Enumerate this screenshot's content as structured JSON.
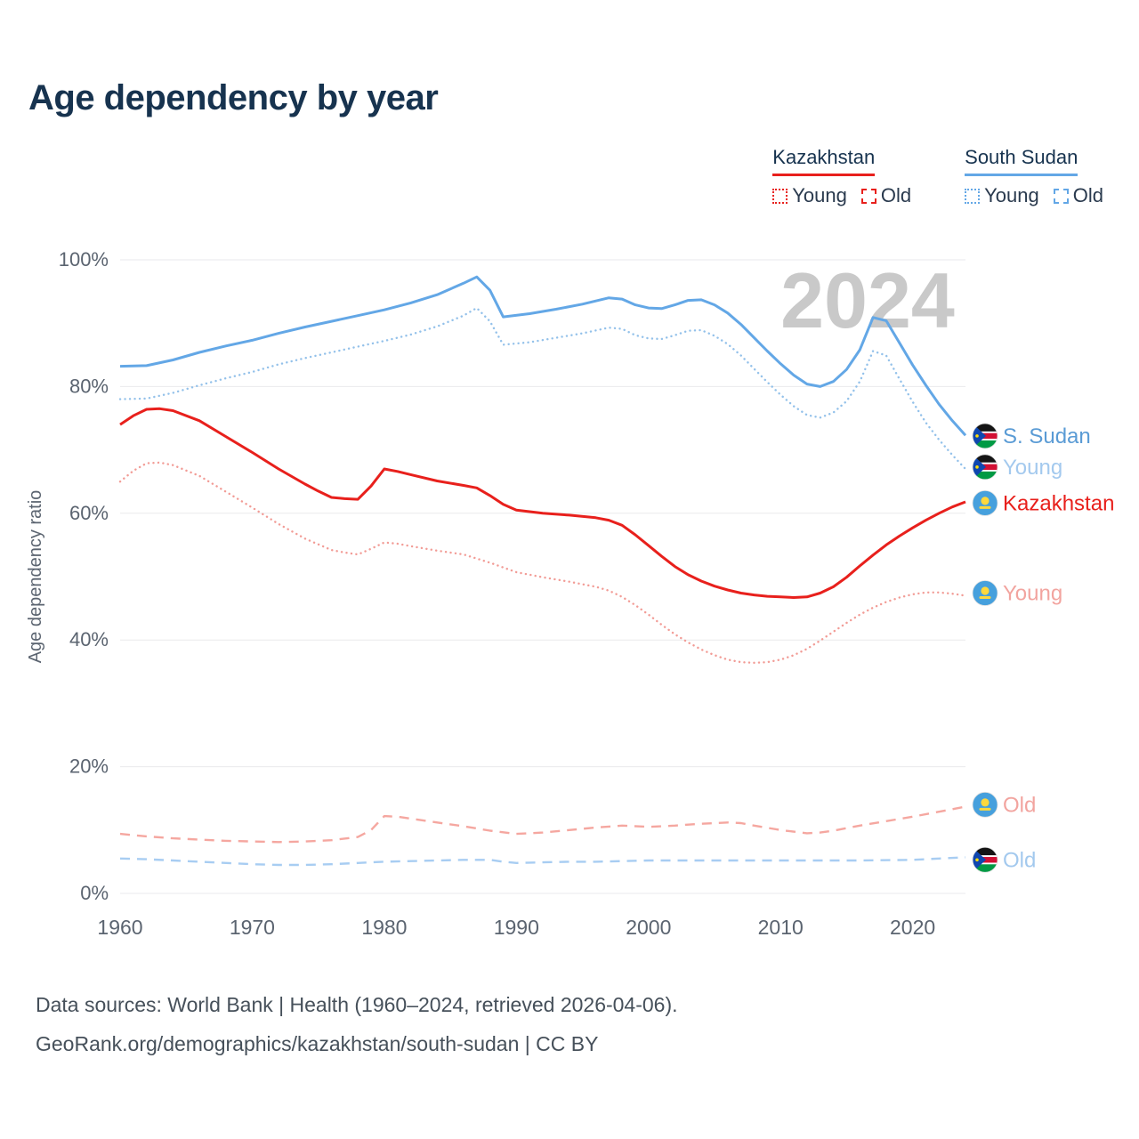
{
  "title": "Age dependency by year",
  "watermark": "2024",
  "legend": {
    "groups": [
      {
        "country": "Kazakhstan",
        "color": "#e8201c",
        "items": [
          {
            "label": "Young",
            "style": "dotted"
          },
          {
            "label": "Old",
            "style": "dashed"
          }
        ]
      },
      {
        "country": "South Sudan",
        "color": "#63a7e6",
        "items": [
          {
            "label": "Young",
            "style": "dotted"
          },
          {
            "label": "Old",
            "style": "dashed"
          }
        ]
      }
    ]
  },
  "chart_data": {
    "type": "line",
    "title": "Age dependency by year",
    "xlabel": "",
    "ylabel": "Age dependency ratio",
    "xlim": [
      1960,
      2024
    ],
    "ylim": [
      0,
      100
    ],
    "x_ticks": [
      1960,
      1970,
      1980,
      1990,
      2000,
      2010,
      2020
    ],
    "y_ticks": [
      0,
      20,
      40,
      60,
      80,
      100
    ],
    "y_tick_suffix": "%",
    "grid": true,
    "legend_position": "top-right",
    "series": [
      {
        "id": "south-sudan-total",
        "name": "South Sudan (total)",
        "color": "#63a7e6",
        "style": "solid",
        "points": [
          [
            1960,
            83.2
          ],
          [
            1962,
            83.3
          ],
          [
            1964,
            84.2
          ],
          [
            1966,
            85.4
          ],
          [
            1968,
            86.4
          ],
          [
            1970,
            87.3
          ],
          [
            1972,
            88.4
          ],
          [
            1974,
            89.4
          ],
          [
            1976,
            90.3
          ],
          [
            1978,
            91.2
          ],
          [
            1980,
            92.1
          ],
          [
            1982,
            93.2
          ],
          [
            1984,
            94.5
          ],
          [
            1986,
            96.3
          ],
          [
            1987,
            97.3
          ],
          [
            1988,
            95.2
          ],
          [
            1989,
            91.0
          ],
          [
            1991,
            91.5
          ],
          [
            1993,
            92.2
          ],
          [
            1995,
            93.0
          ],
          [
            1997,
            94.0
          ],
          [
            1998,
            93.8
          ],
          [
            1999,
            92.9
          ],
          [
            2000,
            92.4
          ],
          [
            2001,
            92.3
          ],
          [
            2002,
            92.9
          ],
          [
            2003,
            93.6
          ],
          [
            2004,
            93.7
          ],
          [
            2005,
            92.9
          ],
          [
            2006,
            91.6
          ],
          [
            2007,
            89.8
          ],
          [
            2008,
            87.7
          ],
          [
            2009,
            85.6
          ],
          [
            2010,
            83.6
          ],
          [
            2011,
            81.8
          ],
          [
            2012,
            80.4
          ],
          [
            2013,
            80.0
          ],
          [
            2014,
            80.8
          ],
          [
            2015,
            82.7
          ],
          [
            2016,
            85.8
          ],
          [
            2017,
            90.9
          ],
          [
            2018,
            90.4
          ],
          [
            2019,
            86.9
          ],
          [
            2020,
            83.4
          ],
          [
            2021,
            80.2
          ],
          [
            2022,
            77.2
          ],
          [
            2023,
            74.6
          ],
          [
            2024,
            72.3
          ]
        ]
      },
      {
        "id": "south-sudan-young",
        "name": "South Sudan Young",
        "color": "#93c1ea",
        "style": "dotted",
        "points": [
          [
            1960,
            78.0
          ],
          [
            1962,
            78.1
          ],
          [
            1964,
            79.0
          ],
          [
            1966,
            80.2
          ],
          [
            1968,
            81.3
          ],
          [
            1970,
            82.3
          ],
          [
            1972,
            83.5
          ],
          [
            1974,
            84.5
          ],
          [
            1976,
            85.4
          ],
          [
            1978,
            86.3
          ],
          [
            1980,
            87.2
          ],
          [
            1982,
            88.2
          ],
          [
            1984,
            89.5
          ],
          [
            1986,
            91.2
          ],
          [
            1987,
            92.4
          ],
          [
            1988,
            90.3
          ],
          [
            1989,
            86.6
          ],
          [
            1991,
            87.0
          ],
          [
            1993,
            87.7
          ],
          [
            1995,
            88.4
          ],
          [
            1997,
            89.3
          ],
          [
            1998,
            89.1
          ],
          [
            1999,
            88.1
          ],
          [
            2000,
            87.6
          ],
          [
            2001,
            87.5
          ],
          [
            2002,
            88.1
          ],
          [
            2003,
            88.8
          ],
          [
            2004,
            88.9
          ],
          [
            2005,
            88.0
          ],
          [
            2006,
            86.7
          ],
          [
            2007,
            84.9
          ],
          [
            2008,
            82.8
          ],
          [
            2009,
            80.7
          ],
          [
            2010,
            78.7
          ],
          [
            2011,
            76.9
          ],
          [
            2012,
            75.5
          ],
          [
            2013,
            75.1
          ],
          [
            2014,
            75.9
          ],
          [
            2015,
            77.7
          ],
          [
            2016,
            80.8
          ],
          [
            2017,
            85.6
          ],
          [
            2018,
            84.9
          ],
          [
            2019,
            81.2
          ],
          [
            2020,
            77.6
          ],
          [
            2021,
            74.3
          ],
          [
            2022,
            71.6
          ],
          [
            2023,
            69.2
          ],
          [
            2024,
            67.0
          ]
        ]
      },
      {
        "id": "kazakhstan-total",
        "name": "Kazakhstan (total)",
        "color": "#e8201c",
        "style": "solid",
        "points": [
          [
            1960,
            74.0
          ],
          [
            1961,
            75.4
          ],
          [
            1962,
            76.4
          ],
          [
            1963,
            76.5
          ],
          [
            1964,
            76.2
          ],
          [
            1966,
            74.6
          ],
          [
            1968,
            72.1
          ],
          [
            1970,
            69.6
          ],
          [
            1972,
            67.0
          ],
          [
            1974,
            64.6
          ],
          [
            1975,
            63.5
          ],
          [
            1976,
            62.5
          ],
          [
            1977,
            62.3
          ],
          [
            1978,
            62.2
          ],
          [
            1979,
            64.3
          ],
          [
            1980,
            67.0
          ],
          [
            1981,
            66.6
          ],
          [
            1982,
            66.1
          ],
          [
            1984,
            65.1
          ],
          [
            1986,
            64.4
          ],
          [
            1987,
            64.0
          ],
          [
            1988,
            62.8
          ],
          [
            1989,
            61.4
          ],
          [
            1990,
            60.5
          ],
          [
            1992,
            60.0
          ],
          [
            1994,
            59.7
          ],
          [
            1996,
            59.3
          ],
          [
            1997,
            58.9
          ],
          [
            1998,
            58.1
          ],
          [
            1999,
            56.6
          ],
          [
            2000,
            54.9
          ],
          [
            2001,
            53.2
          ],
          [
            2002,
            51.6
          ],
          [
            2003,
            50.3
          ],
          [
            2004,
            49.3
          ],
          [
            2005,
            48.5
          ],
          [
            2006,
            47.9
          ],
          [
            2007,
            47.4
          ],
          [
            2008,
            47.1
          ],
          [
            2009,
            46.9
          ],
          [
            2010,
            46.8
          ],
          [
            2011,
            46.7
          ],
          [
            2012,
            46.8
          ],
          [
            2013,
            47.4
          ],
          [
            2014,
            48.4
          ],
          [
            2015,
            49.9
          ],
          [
            2016,
            51.7
          ],
          [
            2017,
            53.4
          ],
          [
            2018,
            55.0
          ],
          [
            2019,
            56.4
          ],
          [
            2020,
            57.7
          ],
          [
            2021,
            58.9
          ],
          [
            2022,
            60.0
          ],
          [
            2023,
            61.0
          ],
          [
            2024,
            61.8
          ]
        ]
      },
      {
        "id": "kazakhstan-young",
        "name": "Kazakhstan Young",
        "color": "#f29c96",
        "style": "dotted",
        "points": [
          [
            1960,
            65.0
          ],
          [
            1961,
            66.7
          ],
          [
            1962,
            67.9
          ],
          [
            1963,
            68.0
          ],
          [
            1964,
            67.6
          ],
          [
            1966,
            65.9
          ],
          [
            1968,
            63.4
          ],
          [
            1970,
            60.9
          ],
          [
            1972,
            58.3
          ],
          [
            1974,
            56.0
          ],
          [
            1976,
            54.2
          ],
          [
            1977,
            53.8
          ],
          [
            1978,
            53.5
          ],
          [
            1979,
            54.4
          ],
          [
            1980,
            55.4
          ],
          [
            1981,
            55.2
          ],
          [
            1982,
            54.8
          ],
          [
            1984,
            54.1
          ],
          [
            1986,
            53.5
          ],
          [
            1988,
            52.2
          ],
          [
            1990,
            50.7
          ],
          [
            1992,
            49.9
          ],
          [
            1994,
            49.2
          ],
          [
            1996,
            48.4
          ],
          [
            1997,
            47.8
          ],
          [
            1998,
            46.8
          ],
          [
            1999,
            45.5
          ],
          [
            2000,
            44.0
          ],
          [
            2001,
            42.4
          ],
          [
            2002,
            40.9
          ],
          [
            2003,
            39.6
          ],
          [
            2004,
            38.5
          ],
          [
            2005,
            37.6
          ],
          [
            2006,
            36.9
          ],
          [
            2007,
            36.5
          ],
          [
            2008,
            36.4
          ],
          [
            2009,
            36.5
          ],
          [
            2010,
            36.9
          ],
          [
            2011,
            37.6
          ],
          [
            2012,
            38.6
          ],
          [
            2013,
            39.9
          ],
          [
            2014,
            41.3
          ],
          [
            2015,
            42.7
          ],
          [
            2016,
            44.0
          ],
          [
            2017,
            45.1
          ],
          [
            2018,
            46.0
          ],
          [
            2019,
            46.7
          ],
          [
            2020,
            47.2
          ],
          [
            2021,
            47.5
          ],
          [
            2022,
            47.5
          ],
          [
            2023,
            47.3
          ],
          [
            2024,
            47.0
          ]
        ]
      },
      {
        "id": "kazakhstan-old",
        "name": "Kazakhstan Old",
        "color": "#f5a7a0",
        "style": "dashed",
        "points": [
          [
            1960,
            9.4
          ],
          [
            1962,
            9.0
          ],
          [
            1964,
            8.7
          ],
          [
            1966,
            8.5
          ],
          [
            1968,
            8.3
          ],
          [
            1970,
            8.2
          ],
          [
            1972,
            8.1
          ],
          [
            1974,
            8.2
          ],
          [
            1976,
            8.4
          ],
          [
            1978,
            8.9
          ],
          [
            1979,
            10.0
          ],
          [
            1980,
            12.2
          ],
          [
            1981,
            12.1
          ],
          [
            1982,
            11.8
          ],
          [
            1984,
            11.2
          ],
          [
            1986,
            10.6
          ],
          [
            1988,
            9.9
          ],
          [
            1990,
            9.4
          ],
          [
            1992,
            9.6
          ],
          [
            1994,
            10.0
          ],
          [
            1996,
            10.4
          ],
          [
            1998,
            10.7
          ],
          [
            2000,
            10.5
          ],
          [
            2002,
            10.7
          ],
          [
            2004,
            11.0
          ],
          [
            2006,
            11.2
          ],
          [
            2007,
            11.1
          ],
          [
            2008,
            10.7
          ],
          [
            2010,
            10.0
          ],
          [
            2012,
            9.5
          ],
          [
            2013,
            9.6
          ],
          [
            2014,
            9.9
          ],
          [
            2016,
            10.7
          ],
          [
            2018,
            11.4
          ],
          [
            2020,
            12.1
          ],
          [
            2022,
            12.9
          ],
          [
            2024,
            13.7
          ]
        ]
      },
      {
        "id": "south-sudan-old",
        "name": "South Sudan Old",
        "color": "#a8cdf2",
        "style": "dashed",
        "points": [
          [
            1960,
            5.5
          ],
          [
            1962,
            5.4
          ],
          [
            1964,
            5.2
          ],
          [
            1966,
            5.0
          ],
          [
            1968,
            4.8
          ],
          [
            1970,
            4.6
          ],
          [
            1972,
            4.5
          ],
          [
            1974,
            4.5
          ],
          [
            1976,
            4.6
          ],
          [
            1978,
            4.8
          ],
          [
            1980,
            5.0
          ],
          [
            1982,
            5.1
          ],
          [
            1984,
            5.2
          ],
          [
            1986,
            5.3
          ],
          [
            1988,
            5.3
          ],
          [
            1989,
            5.0
          ],
          [
            1990,
            4.8
          ],
          [
            1992,
            4.9
          ],
          [
            1994,
            5.0
          ],
          [
            1996,
            5.0
          ],
          [
            1998,
            5.1
          ],
          [
            2000,
            5.2
          ],
          [
            2004,
            5.2
          ],
          [
            2008,
            5.2
          ],
          [
            2012,
            5.2
          ],
          [
            2016,
            5.2
          ],
          [
            2020,
            5.3
          ],
          [
            2022,
            5.5
          ],
          [
            2024,
            5.7
          ]
        ]
      }
    ]
  },
  "end_labels": [
    {
      "id": "south-sudan-total",
      "text": "S. Sudan",
      "flag": "south-sudan",
      "color": "#5a9bd5",
      "value": 72.2
    },
    {
      "id": "south-sudan-young",
      "text": "Young",
      "flag": "south-sudan",
      "color": "#a3c9ee",
      "value": 67.3
    },
    {
      "id": "kazakhstan-total",
      "text": "Kazakhstan",
      "flag": "kazakhstan",
      "color": "#e8201c",
      "value": 61.6
    },
    {
      "id": "kazakhstan-young",
      "text": "Young",
      "flag": "kazakhstan",
      "color": "#f2a49f",
      "value": 47.4
    },
    {
      "id": "kazakhstan-old",
      "text": "Old",
      "flag": "kazakhstan",
      "color": "#f2a49f",
      "value": 14.0
    },
    {
      "id": "south-sudan-old",
      "text": "Old",
      "flag": "south-sudan",
      "color": "#a3c9ee",
      "value": 5.3
    }
  ],
  "footer": {
    "line1": "Data sources: World Bank | Health (1960–2024, retrieved 2026-04-06).",
    "line2": "GeoRank.org/demographics/kazakhstan/south-sudan | CC BY"
  }
}
